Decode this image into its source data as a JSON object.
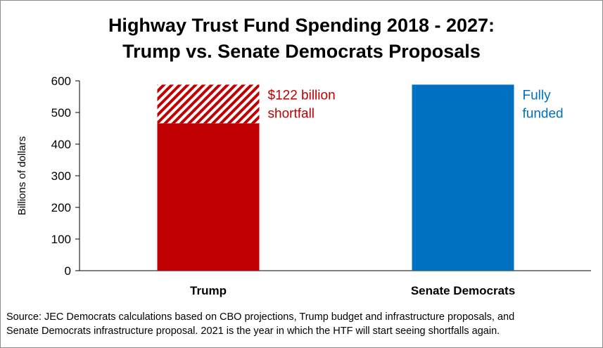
{
  "chart_data": {
    "type": "bar",
    "title_line1": "Highway Trust Fund Spending 2018 - 2027:",
    "title_line2": "Trump vs. Senate Democrats Proposals",
    "ylabel": "Billions of dollars",
    "ylim": [
      0,
      600
    ],
    "yticks": [
      0,
      100,
      200,
      300,
      400,
      500,
      600
    ],
    "categories": [
      "Trump",
      "Senate Democrats"
    ],
    "bars": [
      {
        "category": "Trump",
        "funded": 466,
        "shortfall": 122,
        "total": 588,
        "annotation_line1": "$122 billion",
        "annotation_line2": "shortfall"
      },
      {
        "category": "Senate Democrats",
        "funded": 588,
        "shortfall": 0,
        "total": 588,
        "annotation_line1": "Fully",
        "annotation_line2": "funded"
      }
    ],
    "colors": {
      "trump": "#c00000",
      "senate": "#0070c0",
      "axis": "#000000"
    },
    "grid": false,
    "legend": "none"
  },
  "source_line1": "Source: JEC Democrats calculations based on CBO projections, Trump budget and infrastructure proposals, and",
  "source_line2": "Senate Democrats infrastructure proposal. 2021 is the year in which the HTF will start seeing shortfalls again."
}
